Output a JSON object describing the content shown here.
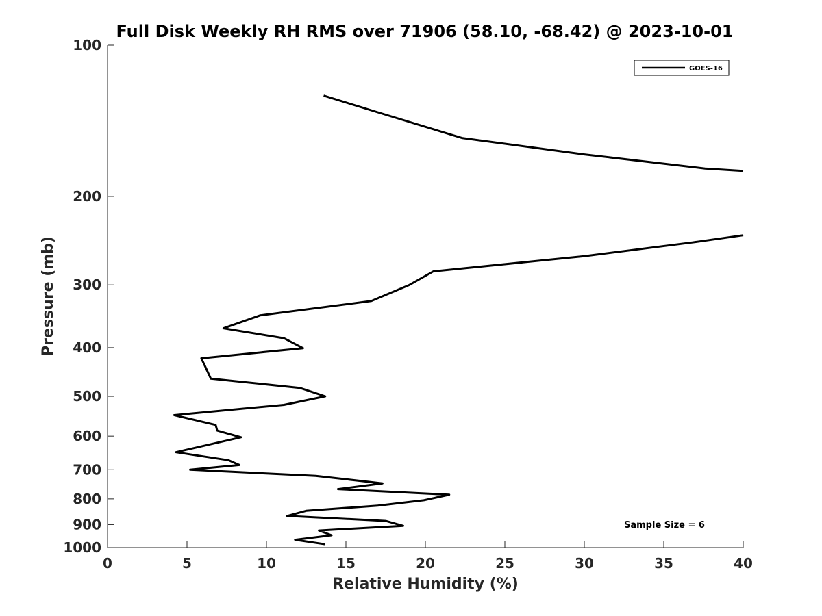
{
  "chart_data": {
    "type": "line",
    "title": "Full Disk Weekly RH RMS over 71906 (58.10, -68.42) @ 2023-10-01",
    "xlabel": "Relative Humidity (%)",
    "ylabel": "Pressure (mb)",
    "xlim": [
      0,
      40
    ],
    "ylim": [
      100,
      1000
    ],
    "yscale": "log",
    "y_reversed": true,
    "grid": false,
    "legend_position": "top-right",
    "xticks": [
      0,
      5,
      10,
      15,
      20,
      25,
      30,
      35,
      40
    ],
    "yticks": [
      100,
      200,
      300,
      400,
      500,
      600,
      700,
      800,
      900,
      1000
    ],
    "series": [
      {
        "name": "GOES-16",
        "color": "#000000",
        "segments": [
          [
            [
              13.6,
              126
            ],
            [
              17.0,
              136
            ],
            [
              22.3,
              153
            ],
            [
              30.0,
              165
            ],
            [
              37.6,
              176
            ],
            [
              40.0,
              178
            ]
          ],
          [
            [
              40.0,
              239
            ],
            [
              36.8,
              247
            ],
            [
              30.0,
              263
            ],
            [
              20.5,
              282
            ],
            [
              19.0,
              300
            ],
            [
              16.6,
              323
            ],
            [
              9.6,
              345
            ],
            [
              7.3,
              366
            ],
            [
              11.1,
              383
            ],
            [
              12.3,
              401
            ],
            [
              5.9,
              420
            ],
            [
              6.1,
              433
            ],
            [
              6.5,
              461
            ],
            [
              12.1,
              481
            ],
            [
              13.7,
              500
            ],
            [
              11.1,
              520
            ],
            [
              4.2,
              545
            ],
            [
              6.8,
              570
            ],
            [
              6.9,
              585
            ],
            [
              8.4,
              603
            ],
            [
              4.3,
              646
            ],
            [
              7.6,
              670
            ],
            [
              8.3,
              685
            ],
            [
              5.2,
              700
            ],
            [
              13.1,
              720
            ],
            [
              17.3,
              745
            ],
            [
              14.5,
              765
            ],
            [
              21.5,
              785
            ],
            [
              19.9,
              805
            ],
            [
              17.0,
              825
            ],
            [
              12.5,
              845
            ],
            [
              11.3,
              865
            ],
            [
              17.5,
              885
            ],
            [
              18.6,
              905
            ],
            [
              13.3,
              925
            ],
            [
              14.1,
              945
            ],
            [
              11.8,
              965
            ],
            [
              13.7,
              985
            ]
          ]
        ]
      }
    ],
    "annotations": [
      "Sample Size = 6"
    ]
  },
  "colors": {
    "line": "#000000",
    "axis": "#262626",
    "background": "#ffffff"
  }
}
